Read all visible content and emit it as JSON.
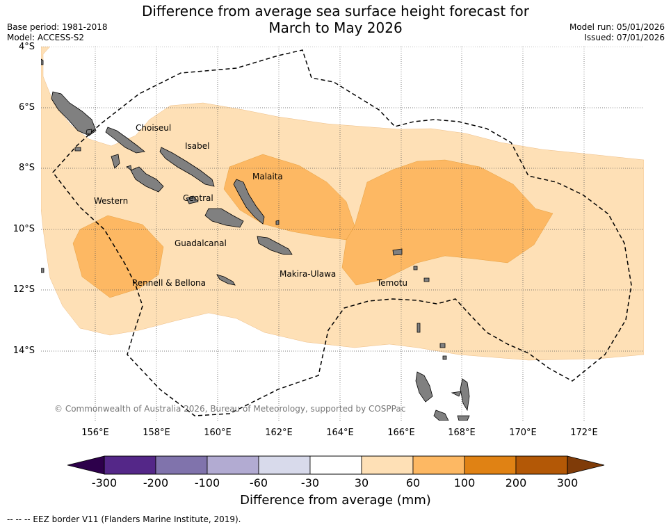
{
  "title_line1": "Difference from average sea surface height forecast for",
  "title_line2": "March to May 2026",
  "base_period": "Base period: 1981-2018",
  "model": "Model: ACCESS-S2",
  "model_run": "Model run: 05/01/2026",
  "issued": "Issued: 07/01/2026",
  "lat_labels": [
    "4°S",
    "6°S",
    "8°S",
    "10°S",
    "12°S",
    "14°S"
  ],
  "lon_labels": [
    "156°E",
    "158°E",
    "160°E",
    "162°E",
    "164°E",
    "166°E",
    "168°E",
    "170°E",
    "172°E"
  ],
  "places": {
    "choiseul": "Choiseul",
    "isabel": "Isabel",
    "malaita": "Malaita",
    "western": "Western",
    "central": "Central",
    "guadalcanal": "Guadalcanal",
    "makira": "Makira-Ulawa",
    "temotu": "Temotu",
    "rennell": "Rennell & Bellona"
  },
  "copyright": "© Commonwealth of Australia 2026, Bureau of Meteorology, supported by COSPPac",
  "colorbar": {
    "ticks": [
      "-300",
      "-200",
      "-100",
      "-60",
      "-30",
      "30",
      "60",
      "100",
      "200",
      "300"
    ],
    "colors": [
      "#2d004b",
      "#542788",
      "#8073ac",
      "#b2abd2",
      "#d8daeb",
      "#ffffff",
      "#fee0b6",
      "#fdb863",
      "#e08214",
      "#b35806",
      "#7f3b08"
    ],
    "title": "Difference from average (mm)"
  },
  "footer": "--  --  -- EEZ border V11 (Flanders Marine Institute, 2019).",
  "colors": {
    "land": "#808080",
    "light_orange": "#fee0b6",
    "mid_orange": "#fdb863"
  }
}
